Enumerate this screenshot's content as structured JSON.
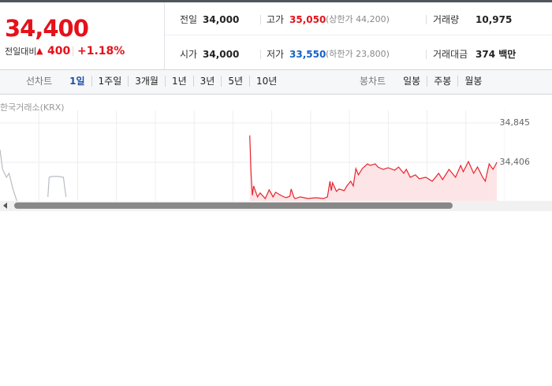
{
  "quote": {
    "price": "34,400",
    "change_label": "전일대비",
    "change": "400",
    "change_rate": "+1.18%"
  },
  "stats": [
    {
      "label": "전일",
      "value": "34,000"
    },
    {
      "label": "고가",
      "value": "35,050",
      "color": "#e5111b",
      "note": "(상한가 44,200)"
    },
    {
      "label": "거래량",
      "value": "10,975"
    },
    {
      "label": "시가",
      "value": "34,000"
    },
    {
      "label": "저가",
      "value": "33,550",
      "color": "#1561c9",
      "note": "(하한가 23,800)"
    },
    {
      "label": "거래대금",
      "value": "374 백만"
    }
  ],
  "tabs": {
    "line_label": "선차트",
    "line": [
      "1일",
      "1주일",
      "3개월",
      "1년",
      "3년",
      "5년",
      "10년"
    ],
    "active": 0,
    "candle_label": "봉차트",
    "candle": [
      "일봉",
      "주봉",
      "월봉"
    ]
  },
  "chart_data": {
    "type": "line",
    "source": "한국거래소(KRX)",
    "xlim": [
      0,
      390
    ],
    "xticks": [
      30,
      60,
      90,
      120,
      150,
      180,
      210,
      240,
      270,
      300,
      330,
      360,
      390
    ],
    "ylim": [
      33967,
      34845
    ],
    "yticks": [
      {
        "value": 34845,
        "label": "34,845"
      },
      {
        "value": 34406,
        "label": "34,406"
      }
    ],
    "grid": true,
    "series": [
      {
        "color": "#e8242e",
        "fill": "#fde4e6",
        "x": [
          193,
          194,
          195,
          196,
          199,
          201,
          205,
          208,
          211,
          213,
          217,
          221,
          224,
          225,
          227,
          228,
          232,
          238,
          244,
          250,
          253,
          255,
          256,
          257,
          260,
          262,
          266,
          268,
          271,
          273,
          275,
          277,
          280,
          284,
          286,
          290,
          292,
          296,
          300,
          305,
          308,
          312,
          314,
          317,
          321,
          324,
          329,
          334,
          339,
          342,
          347,
          352,
          356,
          358,
          362,
          366,
          369,
          373,
          375,
          378,
          381,
          384
        ],
        "values": [
          34705,
          34283,
          34037,
          34142,
          34020,
          34064,
          34002,
          34099,
          34020,
          34072,
          34037,
          34011,
          34028,
          34108,
          34020,
          34002,
          34020,
          34002,
          34011,
          34002,
          34020,
          34195,
          34090,
          34178,
          34081,
          34108,
          34090,
          34142,
          34195,
          34142,
          34336,
          34266,
          34336,
          34388,
          34371,
          34388,
          34353,
          34327,
          34345,
          34318,
          34353,
          34283,
          34327,
          34239,
          34266,
          34222,
          34239,
          34195,
          34283,
          34213,
          34327,
          34239,
          34371,
          34301,
          34415,
          34283,
          34353,
          34239,
          34195,
          34388,
          34327,
          34406
        ]
      },
      {
        "color": "#b8bcc2",
        "x": [
          0,
          2,
          5,
          7,
          10,
          12,
          13,
          20,
          37,
          38,
          40,
          45,
          49,
          51
        ],
        "values": [
          34547,
          34327,
          34239,
          34283,
          34108,
          34020,
          33976,
          null,
          34020,
          34239,
          34248,
          34248,
          34239,
          34020
        ]
      }
    ]
  }
}
